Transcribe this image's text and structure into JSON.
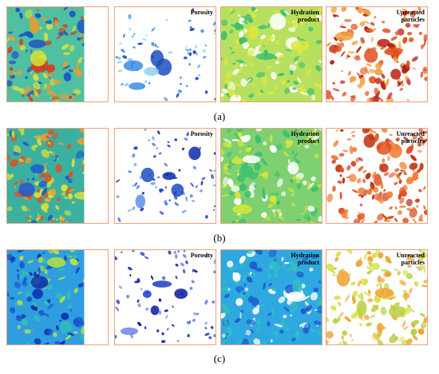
{
  "rows": [
    {
      "caption": "(a)",
      "panels": [
        {
          "label": "",
          "type": "composite",
          "base": "#4fc0a0",
          "blobs": [
            "#d7e23a",
            "#f29a2c",
            "#d8401c",
            "#1d55c8"
          ]
        },
        {
          "label": "Porosity",
          "type": "porosity",
          "base": "#ffffff",
          "blobs": [
            "#8fd0f0",
            "#3a8ee0",
            "#1b4fc0"
          ]
        },
        {
          "label": "Hydration\nproduct",
          "type": "hydration",
          "base": "#b8e060",
          "blobs": [
            "#3cc070",
            "#e0e83a",
            "#ffffff"
          ]
        },
        {
          "label": "Unreacted\nparticles",
          "type": "unreacted",
          "base": "#ffffff",
          "blobs": [
            "#f4a040",
            "#e05020",
            "#b82010"
          ]
        }
      ]
    },
    {
      "caption": "(b)",
      "panels": [
        {
          "label": "",
          "type": "composite",
          "base": "#3cb0a0",
          "blobs": [
            "#d9e03a",
            "#f0a030",
            "#e05020",
            "#1c5cd0"
          ]
        },
        {
          "label": "Porosity",
          "type": "porosity",
          "base": "#ffffff",
          "blobs": [
            "#5c8ee0",
            "#1f4cc4",
            "#0c2ca8"
          ]
        },
        {
          "label": "Hydration\nproduct",
          "type": "hydration",
          "base": "#7fd070",
          "blobs": [
            "#3cc070",
            "#d6e63a",
            "#ffffff"
          ]
        },
        {
          "label": "Unreacted\nparticles",
          "type": "unreacted",
          "base": "#ffffff",
          "blobs": [
            "#f07a30",
            "#e05020",
            "#c03010"
          ]
        }
      ]
    },
    {
      "caption": "(c)",
      "panels": [
        {
          "label": "",
          "type": "composite",
          "base": "#2f9ee0",
          "blobs": [
            "#b8e040",
            "#30c0b0",
            "#1c5ad0",
            "#0c2ea8"
          ]
        },
        {
          "label": "Porosity",
          "type": "porosity",
          "base": "#ffffff",
          "blobs": [
            "#6a88e0",
            "#1c3cc8",
            "#0a1aa0"
          ]
        },
        {
          "label": "Hydration\nproduct",
          "type": "hydration",
          "base": "#2ea8e0",
          "blobs": [
            "#30c0c0",
            "#1c5cd0",
            "#ffffff"
          ]
        },
        {
          "label": "Unreacted\nparticles",
          "type": "unreacted",
          "base": "#ffffff",
          "blobs": [
            "#d8e050",
            "#b8d040",
            "#f0a030"
          ]
        }
      ]
    }
  ]
}
